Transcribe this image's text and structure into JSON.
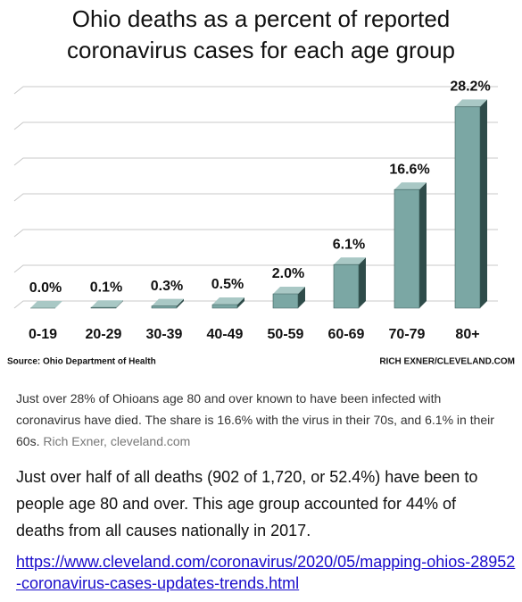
{
  "chart_data": {
    "type": "bar3d",
    "title": "Ohio deaths as a percent of reported coronavirus cases for each age group",
    "categories": [
      "0-19",
      "20-29",
      "30-39",
      "40-49",
      "50-59",
      "60-69",
      "70-79",
      "80+"
    ],
    "values": [
      0.0,
      0.1,
      0.3,
      0.5,
      2.0,
      6.1,
      16.6,
      28.2
    ],
    "value_labels": [
      "0.0%",
      "0.1%",
      "0.3%",
      "0.5%",
      "2.0%",
      "6.1%",
      "16.6%",
      "28.2%"
    ],
    "color": "#7ba7a4",
    "ylim": [
      0,
      30
    ],
    "yticks": [
      0,
      5,
      10,
      15,
      20,
      25,
      30
    ],
    "grid": true,
    "source": "Source: Ohio Department of Health",
    "credit": "RICH EXNER/CLEVELAND.COM"
  },
  "caption": {
    "text": "Just over 28% of Ohioans age 80 and over known to have been infected with coronavirus have died. The share is 16.6% with the virus in their 70s, and 6.1% in their 60s.",
    "credit": "Rich Exner, cleveland.com"
  },
  "body": "Just over half of all deaths (902 of 1,720, or 52.4%) have been to people age 80 and over. This age group accounted for 44% of deaths from all causes nationally in 2017.",
  "link": "https://www.cleveland.com/coronavirus/2020/05/mapping-ohios-28952-coronavirus-cases-updates-trends.html"
}
